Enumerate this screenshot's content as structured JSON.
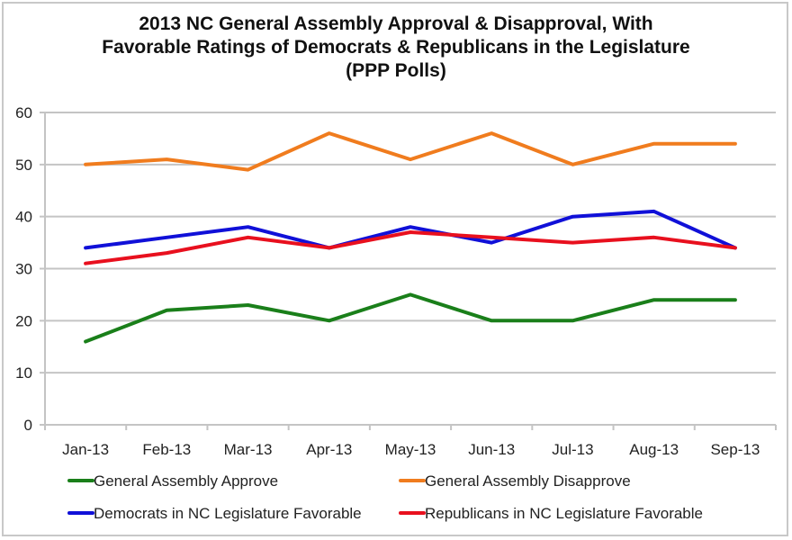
{
  "chart_data": {
    "type": "line",
    "title": "2013 NC General Assembly Approval & Disapproval, With Favorable Ratings of Democrats & Republicans in the Legislature (PPP Polls)",
    "title_lines": [
      "2013 NC General Assembly Approval & Disapproval, With",
      "Favorable Ratings of Democrats & Republicans in the Legislature",
      "(PPP Polls)"
    ],
    "xlabel": "",
    "ylabel": "",
    "categories": [
      "Jan-13",
      "Feb-13",
      "Mar-13",
      "Apr-13",
      "May-13",
      "Jun-13",
      "Jul-13",
      "Aug-13",
      "Sep-13"
    ],
    "ylim": [
      0,
      60
    ],
    "yticks": [
      0,
      10,
      20,
      30,
      40,
      50,
      60
    ],
    "grid": true,
    "legend_position": "bottom",
    "series": [
      {
        "name": "General Assembly Approve",
        "color": "#1a7f1a",
        "values": [
          16,
          22,
          23,
          20,
          25,
          20,
          20,
          24,
          24
        ]
      },
      {
        "name": "General Assembly Disapprove",
        "color": "#f07c1e",
        "values": [
          50,
          51,
          49,
          56,
          51,
          56,
          50,
          54,
          54
        ]
      },
      {
        "name": "Democrats in NC Legislature Favorable",
        "color": "#1010d8",
        "values": [
          34,
          36,
          38,
          34,
          38,
          35,
          40,
          41,
          34
        ]
      },
      {
        "name": "Republicans in NC Legislature Favorable",
        "color": "#e8101e",
        "values": [
          31,
          33,
          36,
          34,
          37,
          36,
          35,
          36,
          34
        ]
      }
    ]
  }
}
